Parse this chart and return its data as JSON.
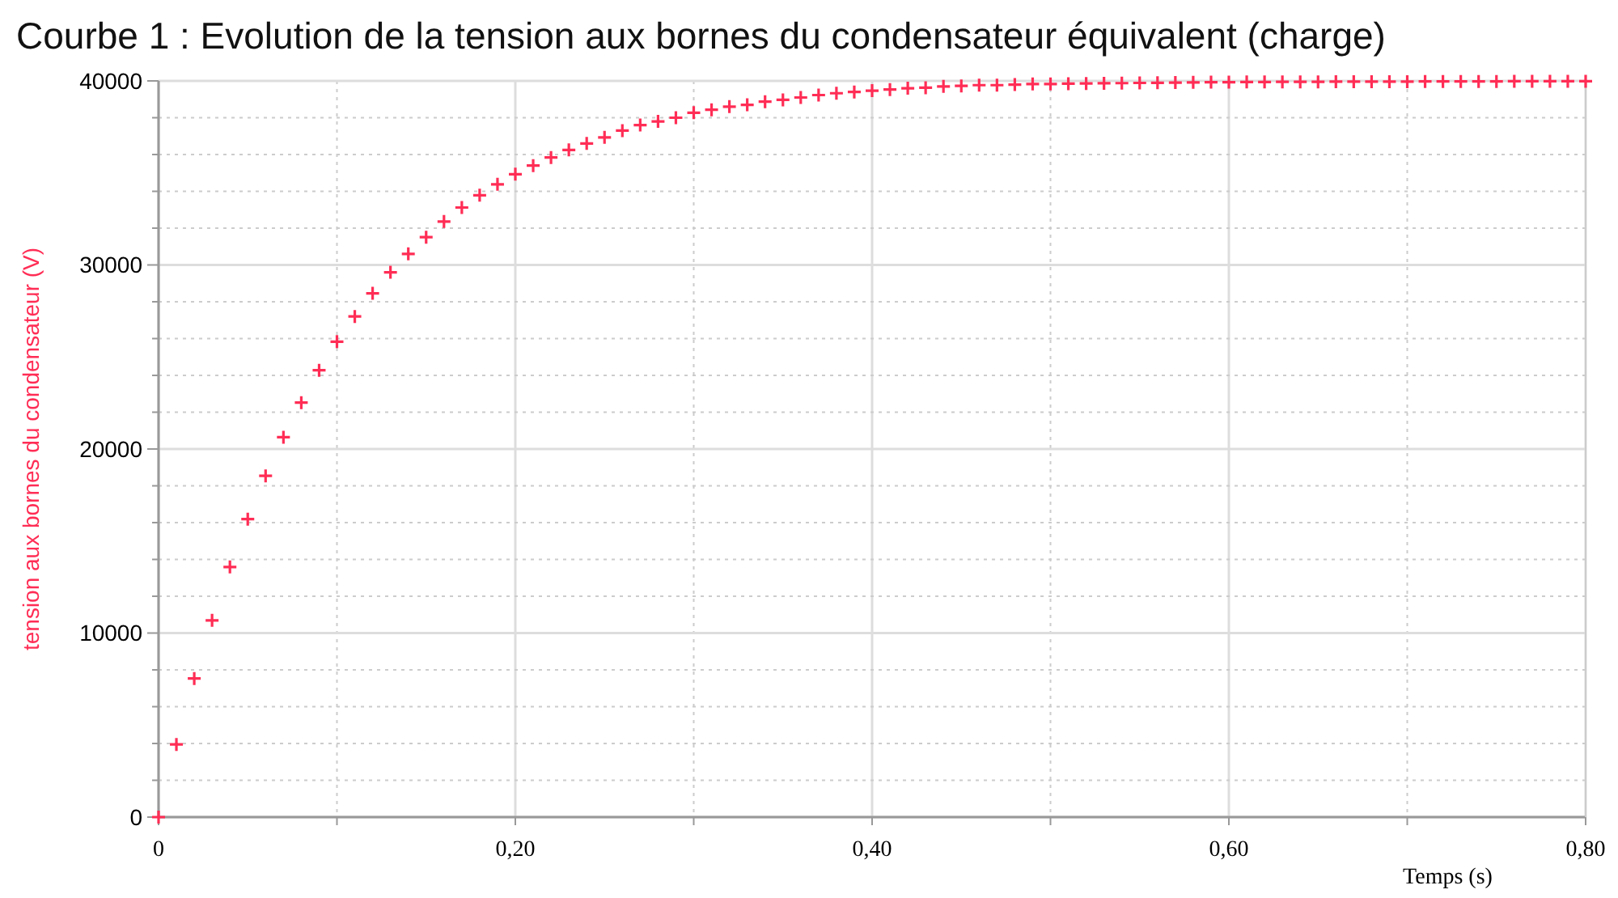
{
  "chart_data": {
    "type": "scatter",
    "title": "Courbe 1 : Evolution de la tension aux bornes du condensateur équivalent (charge)",
    "xlabel": "Temps (s)",
    "ylabel": "tension aux bornes du condensateur (V)",
    "x": [
      0,
      0.01,
      0.02,
      0.03,
      0.04,
      0.05,
      0.06,
      0.07,
      0.08,
      0.09,
      0.1,
      0.11,
      0.12,
      0.13,
      0.14,
      0.15,
      0.16,
      0.17,
      0.18,
      0.19,
      0.2,
      0.21,
      0.22,
      0.23,
      0.24,
      0.25,
      0.26,
      0.27,
      0.28,
      0.29,
      0.3,
      0.31,
      0.32,
      0.33,
      0.34,
      0.35,
      0.36,
      0.37,
      0.38,
      0.39,
      0.4,
      0.41,
      0.42,
      0.43,
      0.44,
      0.45,
      0.46,
      0.47,
      0.48,
      0.49,
      0.5,
      0.51,
      0.52,
      0.53,
      0.54,
      0.55,
      0.56,
      0.57,
      0.58,
      0.59,
      0.6,
      0.61,
      0.62,
      0.63,
      0.64,
      0.65,
      0.66,
      0.67,
      0.68,
      0.69,
      0.7,
      0.71,
      0.72,
      0.73,
      0.74,
      0.75,
      0.76,
      0.77,
      0.78,
      0.79,
      0.8
    ],
    "series": [
      {
        "color": "#ff2d55",
        "values": [
          0,
          3950,
          7530,
          10690,
          13590,
          16190,
          18540,
          20640,
          22520,
          24280,
          25830,
          27200,
          28460,
          29600,
          30600,
          31510,
          32360,
          33120,
          33790,
          34380,
          34930,
          35400,
          35840,
          36250,
          36600,
          36930,
          37300,
          37600,
          37800,
          38000,
          38270,
          38430,
          38600,
          38700,
          38870,
          38970,
          39100,
          39230,
          39330,
          39400,
          39470,
          39530,
          39600,
          39630,
          39700,
          39730,
          39770,
          39770,
          39800,
          39830,
          39830,
          39850,
          39860,
          39870,
          39880,
          39890,
          39900,
          39910,
          39920,
          39930,
          39930,
          39940,
          39940,
          39950,
          39950,
          39950,
          39960,
          39960,
          39960,
          39960,
          39960,
          39970,
          39970,
          39970,
          39970,
          39970,
          39980,
          39980,
          39980,
          39980,
          39980
        ]
      }
    ],
    "xlim": [
      0,
      0.8
    ],
    "ylim": [
      0,
      40000
    ],
    "xticks": [
      0,
      {
        "value": 0.1,
        "label": null
      },
      {
        "value": 0.2,
        "label": "0,20"
      },
      {
        "value": 0.3,
        "label": null
      },
      {
        "value": 0.4,
        "label": "0,40"
      },
      {
        "value": 0.5,
        "label": null
      },
      {
        "value": 0.6,
        "label": "0,60"
      },
      {
        "value": 0.7,
        "label": null
      },
      {
        "value": 0.8,
        "label": "0,80"
      }
    ],
    "yticks": [
      0,
      {
        "value": 2000,
        "label": null
      },
      {
        "value": 4000,
        "label": null
      },
      {
        "value": 6000,
        "label": null
      },
      {
        "value": 8000,
        "label": null
      },
      10000,
      {
        "value": 12000,
        "label": null
      },
      {
        "value": 14000,
        "label": null
      },
      {
        "value": 16000,
        "label": null
      },
      {
        "value": 18000,
        "label": null
      },
      20000,
      {
        "value": 22000,
        "label": null
      },
      {
        "value": 24000,
        "label": null
      },
      {
        "value": 26000,
        "label": null
      },
      {
        "value": 28000,
        "label": null
      },
      30000,
      {
        "value": 32000,
        "label": null
      },
      {
        "value": 34000,
        "label": null
      },
      {
        "value": 36000,
        "label": null
      },
      {
        "value": 38000,
        "label": null
      },
      40000
    ],
    "grid": true,
    "marker": "cross"
  }
}
